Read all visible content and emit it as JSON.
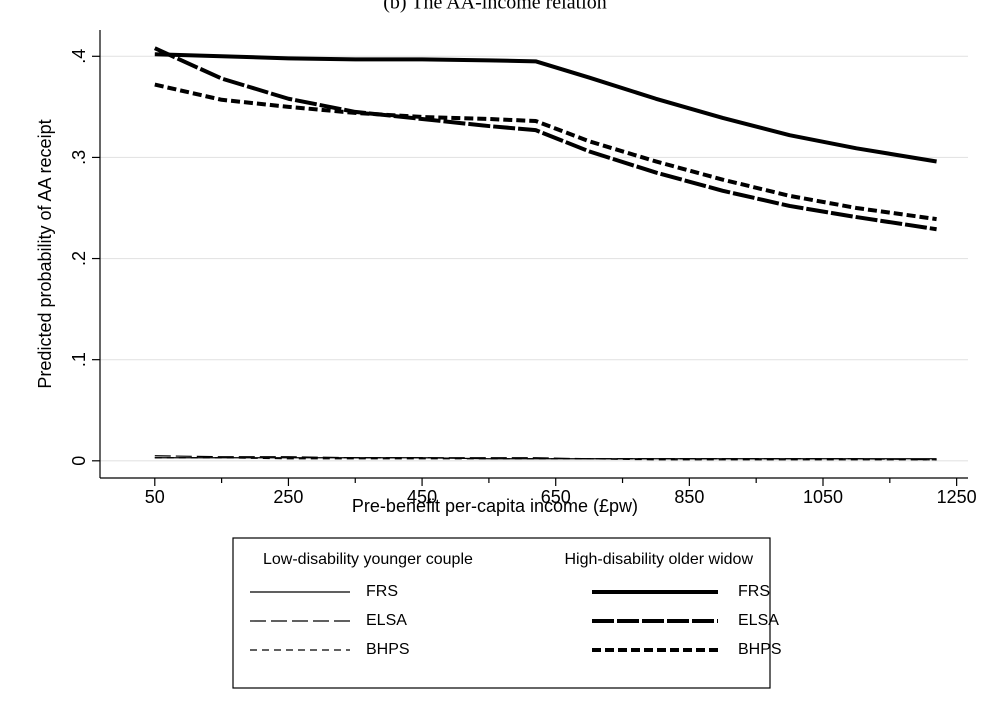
{
  "chart_data": {
    "type": "line",
    "title": "(b) The AA-income relation",
    "x_label": "Pre-benefit per-capita income (£pw)",
    "y_label": "Predicted probability of AA receipt",
    "x": [
      50,
      150,
      250,
      350,
      450,
      550,
      620,
      700,
      800,
      900,
      1000,
      1100,
      1220
    ],
    "xlim": [
      -32,
      1267
    ],
    "xticks": [
      50,
      250,
      450,
      650,
      850,
      1050,
      1250
    ],
    "xminor_ticks": [
      150,
      350,
      550,
      750,
      950,
      1150
    ],
    "ylim": [
      -0.017,
      0.426
    ],
    "yticks": [
      {
        "value": 0,
        "label": "0"
      },
      {
        "value": 0.1,
        "label": ".1"
      },
      {
        "value": 0.2,
        "label": ".2"
      },
      {
        "value": 0.3,
        "label": ".3"
      },
      {
        "value": 0.4,
        "label": ".4"
      }
    ],
    "grid": true,
    "legend_groups": [
      "Low-disability younger couple",
      "High-disability older widow"
    ],
    "series": [
      {
        "name": "FRS",
        "group": 0,
        "color": "#000000",
        "width": 1.2,
        "dash": "none",
        "values": [
          0.003,
          0.003,
          0.003,
          0.003,
          0.003,
          0.002,
          0.002,
          0.002,
          0.002,
          0.002,
          0.002,
          0.002,
          0.002
        ]
      },
      {
        "name": "ELSA",
        "group": 0,
        "color": "#000000",
        "width": 1.2,
        "dash": "16 5",
        "values": [
          0.005,
          0.004,
          0.004,
          0.003,
          0.003,
          0.003,
          0.003,
          0.002,
          0.002,
          0.002,
          0.002,
          0.002,
          0.001
        ]
      },
      {
        "name": "BHPS",
        "group": 0,
        "color": "#000000",
        "width": 1.2,
        "dash": "7 5",
        "values": [
          0.003,
          0.003,
          0.002,
          0.002,
          0.002,
          0.002,
          0.002,
          0.002,
          0.001,
          0.001,
          0.001,
          0.001,
          0.001
        ]
      },
      {
        "name": "FRS",
        "group": 1,
        "color": "#000000",
        "width": 4,
        "dash": "none",
        "values": [
          0.402,
          0.4,
          0.398,
          0.397,
          0.397,
          0.396,
          0.395,
          0.379,
          0.358,
          0.339,
          0.322,
          0.309,
          0.296
        ]
      },
      {
        "name": "ELSA",
        "group": 1,
        "color": "#000000",
        "width": 4,
        "dash": "22 3",
        "values": [
          0.408,
          0.378,
          0.358,
          0.345,
          0.338,
          0.331,
          0.327,
          0.306,
          0.285,
          0.267,
          0.252,
          0.241,
          0.229
        ]
      },
      {
        "name": "BHPS",
        "group": 1,
        "color": "#000000",
        "width": 4,
        "dash": "9 4",
        "values": [
          0.372,
          0.357,
          0.35,
          0.344,
          0.34,
          0.338,
          0.336,
          0.316,
          0.296,
          0.278,
          0.262,
          0.25,
          0.239
        ]
      }
    ]
  }
}
